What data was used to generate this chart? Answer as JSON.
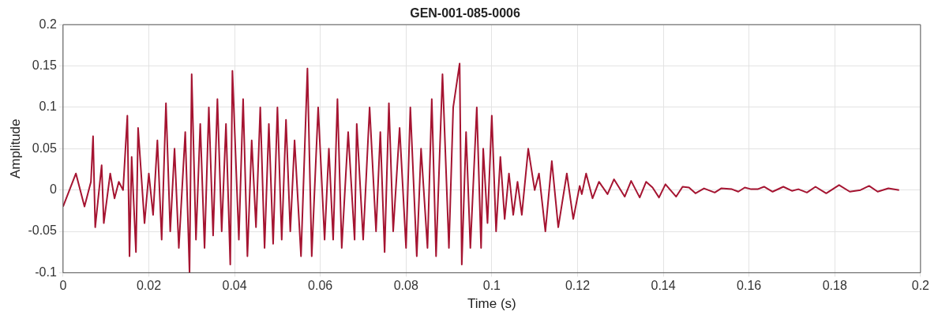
{
  "chart_data": {
    "type": "line",
    "title": "GEN-001-085-0006",
    "xlabel": "Time (s)",
    "ylabel": "Amplitude",
    "xlim": [
      0,
      0.2
    ],
    "xticks": [
      0,
      0.02,
      0.04,
      0.06,
      0.08,
      0.1,
      0.12,
      0.14,
      0.16,
      0.18,
      0.2
    ],
    "ylim": [
      -0.1,
      0.2
    ],
    "yticks": [
      -0.1,
      -0.05,
      0,
      0.05,
      0.1,
      0.15,
      0.2
    ],
    "grid": true,
    "legend": false,
    "marker": "none",
    "line_style": "solid",
    "series": [
      {
        "color": "#a51431",
        "x": [
          0,
          0.003,
          0.005,
          0.0065,
          0.007,
          0.0075,
          0.009,
          0.0095,
          0.011,
          0.012,
          0.013,
          0.014,
          0.015,
          0.0155,
          0.016,
          0.017,
          0.0175,
          0.019,
          0.02,
          0.021,
          0.022,
          0.023,
          0.024,
          0.025,
          0.026,
          0.027,
          0.0285,
          0.0295,
          0.03,
          0.031,
          0.032,
          0.033,
          0.034,
          0.035,
          0.036,
          0.037,
          0.038,
          0.039,
          0.0395,
          0.041,
          0.042,
          0.043,
          0.044,
          0.045,
          0.046,
          0.047,
          0.048,
          0.049,
          0.05,
          0.051,
          0.052,
          0.053,
          0.054,
          0.0555,
          0.057,
          0.058,
          0.0595,
          0.061,
          0.062,
          0.063,
          0.064,
          0.065,
          0.0665,
          0.068,
          0.0685,
          0.07,
          0.0715,
          0.073,
          0.074,
          0.075,
          0.076,
          0.077,
          0.0785,
          0.08,
          0.081,
          0.0825,
          0.0835,
          0.085,
          0.086,
          0.087,
          0.0885,
          0.09,
          0.091,
          0.0925,
          0.093,
          0.094,
          0.095,
          0.0965,
          0.0975,
          0.098,
          0.099,
          0.1,
          0.101,
          0.102,
          0.103,
          0.104,
          0.105,
          0.106,
          0.107,
          0.1085,
          0.11,
          0.111,
          0.1125,
          0.114,
          0.1155,
          0.1175,
          0.119,
          0.1205,
          0.121,
          0.122,
          0.1235,
          0.125,
          0.127,
          0.1285,
          0.131,
          0.1325,
          0.1345,
          0.136,
          0.1375,
          0.139,
          0.1405,
          0.143,
          0.1445,
          0.146,
          0.1475,
          0.1495,
          0.152,
          0.1535,
          0.156,
          0.1575,
          0.159,
          0.1605,
          0.162,
          0.1635,
          0.1655,
          0.168,
          0.17,
          0.1715,
          0.1735,
          0.1755,
          0.178,
          0.181,
          0.1835,
          0.186,
          0.188,
          0.19,
          0.1925,
          0.195
        ],
        "values": [
          -0.02,
          0.02,
          -0.02,
          0.01,
          0.065,
          -0.045,
          0.03,
          -0.04,
          0.02,
          -0.01,
          0.01,
          0,
          0.09,
          -0.08,
          0.04,
          -0.075,
          0.075,
          -0.04,
          0.02,
          -0.03,
          0.06,
          -0.06,
          0.105,
          -0.05,
          0.05,
          -0.07,
          0.07,
          -0.1,
          0.14,
          -0.06,
          0.08,
          -0.07,
          0.1,
          -0.055,
          0.11,
          -0.05,
          0.08,
          -0.09,
          0.144,
          -0.06,
          0.11,
          -0.08,
          0.06,
          -0.045,
          0.1,
          -0.07,
          0.08,
          -0.065,
          0.1,
          -0.06,
          0.085,
          -0.05,
          0.06,
          -0.08,
          0.147,
          -0.08,
          0.1,
          -0.06,
          0.05,
          -0.06,
          0.11,
          -0.07,
          0.07,
          -0.06,
          0.08,
          -0.06,
          0.1,
          -0.05,
          0.07,
          -0.075,
          0.105,
          -0.05,
          0.075,
          -0.07,
          0.1,
          -0.08,
          0.05,
          -0.07,
          0.11,
          -0.08,
          0.14,
          -0.07,
          0.1,
          0.153,
          -0.09,
          0.07,
          -0.07,
          0.1,
          -0.07,
          0.05,
          -0.04,
          0.09,
          -0.05,
          0.04,
          -0.035,
          0.02,
          -0.03,
          0.01,
          -0.03,
          0.05,
          0,
          0.02,
          -0.05,
          0.035,
          -0.045,
          0.02,
          -0.035,
          0.005,
          -0.005,
          0.02,
          -0.01,
          0.01,
          -0.005,
          0.013,
          -0.008,
          0.011,
          -0.009,
          0.01,
          0.003,
          -0.009,
          0.007,
          -0.008,
          0.004,
          0.003,
          -0.004,
          0.002,
          -0.003,
          0.002,
          0.001,
          -0.002,
          0.003,
          0.001,
          0.001,
          0.004,
          -0.002,
          0.004,
          -0.001,
          0.001,
          -0.003,
          0.004,
          -0.004,
          0.006,
          -0.002,
          0,
          0.005,
          -0.002,
          0.002,
          0
        ]
      }
    ]
  }
}
